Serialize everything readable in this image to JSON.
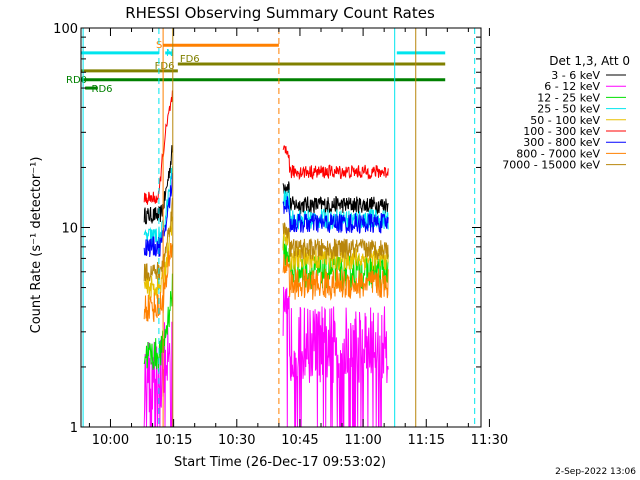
{
  "chart_data": {
    "type": "line",
    "title": "RHESSI Observing Summary Count Rates",
    "xlabel": "Start Time (26-Dec-17 09:53:02)",
    "ylabel": "Count Rate (s⁻¹ detector⁻¹)",
    "y_scale": "log",
    "ylim": [
      1,
      100
    ],
    "xlim_minutes": [
      -7,
      88
    ],
    "x_ticks": [
      {
        "label": "10:00",
        "minutes": 0
      },
      {
        "label": "10:15",
        "minutes": 15
      },
      {
        "label": "10:30",
        "minutes": 30
      },
      {
        "label": "10:45",
        "minutes": 45
      },
      {
        "label": "11:00",
        "minutes": 60
      },
      {
        "label": "11:15",
        "minutes": 75
      },
      {
        "label": "11:30",
        "minutes": 90
      }
    ],
    "y_ticks": [
      {
        "label": "1",
        "value": 1
      },
      {
        "label": "10",
        "value": 10
      },
      {
        "label": "100",
        "value": 100
      }
    ],
    "legend_title": "Det 1,3, Att 0",
    "legend_position": "right",
    "series": [
      {
        "name": "3 - 6 keV",
        "color": "#000000",
        "base1": 11.5,
        "base2": 13.0,
        "jit": 0.1
      },
      {
        "name": "6 - 12 keV",
        "color": "#ff00ff",
        "base1": 1.8,
        "base2": 2.6,
        "jit": 0.45
      },
      {
        "name": "12 - 25 keV",
        "color": "#00e000",
        "base1": 2.3,
        "base2": 6.0,
        "jit": 0.2
      },
      {
        "name": "25 - 50 keV",
        "color": "#00e5ee",
        "base1": 9.0,
        "base2": 11.0,
        "jit": 0.12
      },
      {
        "name": "50 - 100 keV",
        "color": "#e8c000",
        "base1": 5.0,
        "base2": 7.0,
        "jit": 0.14
      },
      {
        "name": "100 - 300 keV",
        "color": "#ff0000",
        "base1": 14.0,
        "base2": 19.0,
        "jit": 0.08
      },
      {
        "name": "300 - 800 keV",
        "color": "#0000ff",
        "base1": 8.0,
        "base2": 10.5,
        "jit": 0.12
      },
      {
        "name": "800 - 7000 keV",
        "color": "#ff8000",
        "base1": 4.0,
        "base2": 5.2,
        "jit": 0.18
      },
      {
        "name": "7000 - 15000 keV",
        "color": "#b8860b",
        "base1": 6.0,
        "base2": 7.8,
        "jit": 0.12
      }
    ],
    "segments_minutes": [
      [
        8,
        12.5
      ],
      [
        41,
        66
      ]
    ],
    "flare": {
      "start_min": 11.5,
      "end_min": 14.8,
      "peak_value": 46
    },
    "flag_bars": [
      {
        "label": "S",
        "color": "#ff8000",
        "start_min": 12.5,
        "end_min": 40,
        "value": 82
      },
      {
        "label": "N",
        "color": "#00e5ee",
        "start_min": 13.0,
        "end_min": 14.5,
        "value": 75
      },
      {
        "label": "",
        "color": "#00e5ee",
        "start_min": -7,
        "end_min": 11.5,
        "value": 75
      },
      {
        "label": "",
        "color": "#00e5ee",
        "start_min": 68,
        "end_min": 79.5,
        "value": 75
      },
      {
        "label": "FD6",
        "color": "#808000",
        "start_min": -7,
        "end_min": 16,
        "value": 61
      },
      {
        "label": "FD6",
        "color": "#808000",
        "start_min": 16,
        "end_min": 79.5,
        "value": 66
      },
      {
        "label": "RD0",
        "color": "#008000",
        "start_min": -7,
        "end_min": 79.5,
        "value": 55
      },
      {
        "label": "RD6",
        "color": "#008000",
        "start_min": -6,
        "end_min": -3,
        "value": 50
      }
    ],
    "vertical_lines": [
      {
        "color": "#00e5ee",
        "minutes": -6.5,
        "style": "solid"
      },
      {
        "color": "#00e5ee",
        "minutes": 11.5,
        "style": "dashed"
      },
      {
        "color": "#ff8000",
        "minutes": 12.5,
        "style": "solid"
      },
      {
        "color": "#b8860b",
        "minutes": 14.8,
        "style": "solid"
      },
      {
        "color": "#ff8000",
        "minutes": 40,
        "style": "dashed"
      },
      {
        "color": "#00e5ee",
        "minutes": 67.5,
        "style": "solid"
      },
      {
        "color": "#b8860b",
        "minutes": 72.5,
        "style": "solid"
      },
      {
        "color": "#00e5ee",
        "minutes": 86.5,
        "style": "dashed"
      }
    ]
  },
  "footer": {
    "date_stamp": "2-Sep-2022 13:06"
  }
}
